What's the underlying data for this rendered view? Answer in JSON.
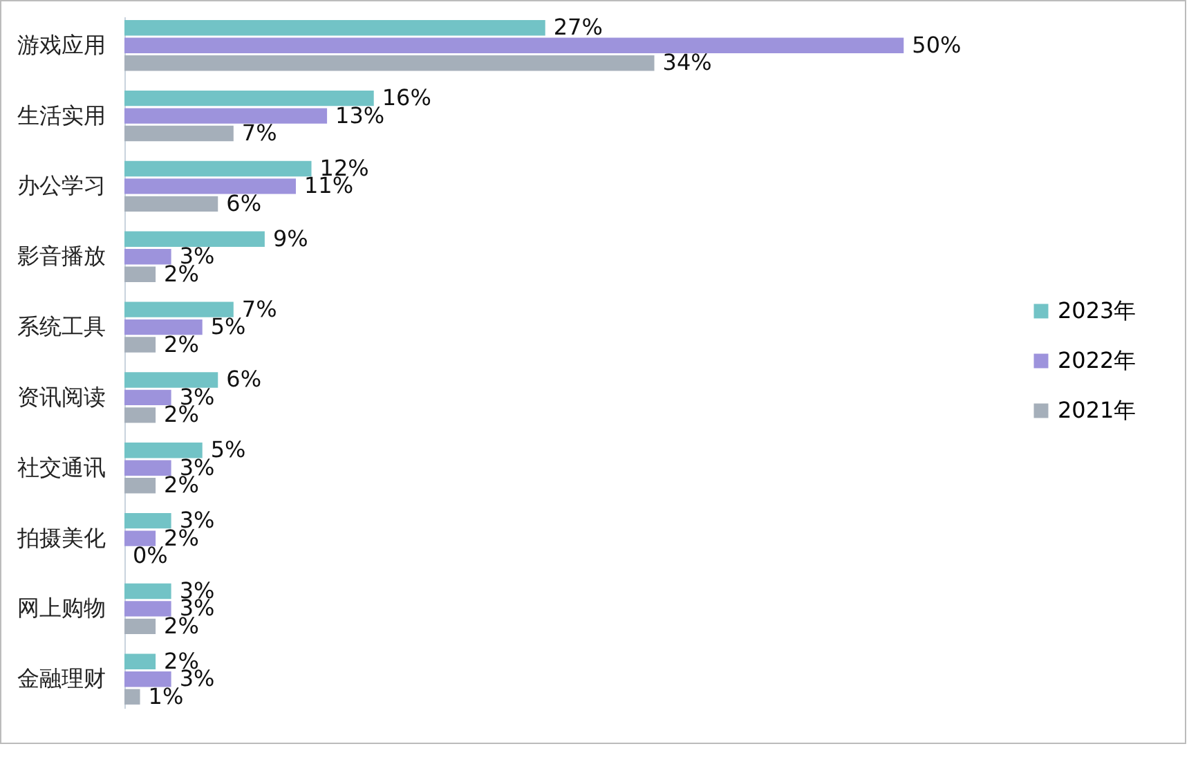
{
  "chart_data": {
    "type": "bar",
    "orientation": "horizontal",
    "legend": "right",
    "categories": [
      "游戏应用",
      "生活实用",
      "办公学习",
      "影音播放",
      "系统工具",
      "资讯阅读",
      "社交通讯",
      "拍摄美化",
      "网上购物",
      "金融理财"
    ],
    "series": [
      {
        "name": "2023年",
        "color": "#72c3c6",
        "values": [
          27,
          16,
          12,
          9,
          7,
          6,
          5,
          3,
          3,
          2
        ],
        "value_labels": [
          "27%",
          "16%",
          "12%",
          "9%",
          "7%",
          "6%",
          "5%",
          "3%",
          "3%",
          "2%"
        ]
      },
      {
        "name": "2022年",
        "color": "#9d93dc",
        "values": [
          50,
          13,
          11,
          3,
          5,
          3,
          3,
          2,
          3,
          3
        ],
        "value_labels": [
          "50%",
          "13%",
          "11%",
          "3%",
          "5%",
          "3%",
          "3%",
          "2%",
          "3%",
          "3%"
        ]
      },
      {
        "name": "2021年",
        "color": "#a5afba",
        "values": [
          34,
          7,
          6,
          2,
          2,
          2,
          2,
          0,
          2,
          1
        ],
        "value_labels": [
          "34%",
          "7%",
          "6%",
          "2%",
          "2%",
          "2%",
          "2%",
          "0%",
          "2%",
          "1%"
        ]
      }
    ]
  }
}
